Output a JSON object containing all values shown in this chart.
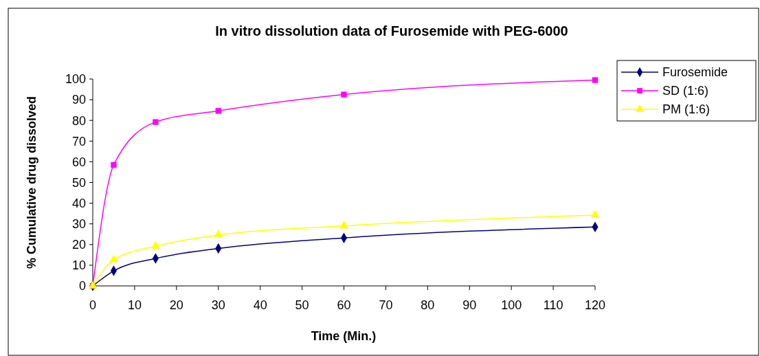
{
  "chart_data": {
    "type": "line",
    "title": "In vitro dissolution data of Furosemide with PEG-6000",
    "xlabel": "Time (Min.)",
    "ylabel": "% Cumulative drug dissolved",
    "x": [
      0,
      5,
      15,
      30,
      60,
      120
    ],
    "series": [
      {
        "name": "Furosemide",
        "color": "#000080",
        "marker": "diamond",
        "values": [
          0,
          7.3,
          13.3,
          18.1,
          23.2,
          28.5
        ]
      },
      {
        "name": "SD (1:6)",
        "color": "#ff00ff",
        "marker": "square",
        "values": [
          0,
          58.5,
          79.2,
          84.6,
          92.5,
          99.5
        ]
      },
      {
        "name": "PM (1:6)",
        "color": "#ffff00",
        "marker": "triangle",
        "values": [
          0,
          12.6,
          19.2,
          24.6,
          29,
          34.2
        ]
      }
    ],
    "xlim": [
      0,
      120
    ],
    "xticks": [
      0,
      10,
      20,
      30,
      40,
      50,
      60,
      70,
      80,
      90,
      100,
      110,
      120
    ],
    "ylim": [
      0,
      100
    ],
    "yticks": [
      0,
      10,
      20,
      30,
      40,
      50,
      60,
      70,
      80,
      90,
      100
    ],
    "grid": false,
    "legend": "right"
  }
}
